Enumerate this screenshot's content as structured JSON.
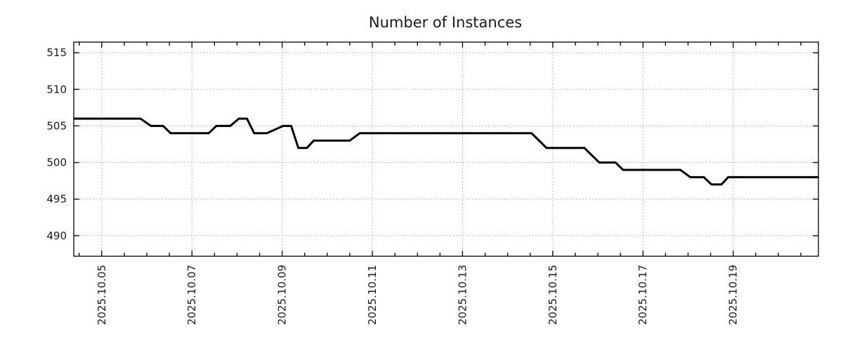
{
  "chart_data": {
    "type": "line",
    "title": "Number of Instances",
    "xlabel": "",
    "ylabel": "",
    "legend": "none",
    "grid": "dotted",
    "colors": {
      "line": "#000000",
      "grid": "#a8a8a8",
      "border": "#000000",
      "text": "#1a1a1a",
      "background": "#ffffff"
    },
    "x_axis": {
      "kind": "date",
      "tick_labels": [
        "2025.10.05",
        "2025.10.07",
        "2025.10.09",
        "2025.10.11",
        "2025.10.13",
        "2025.10.15",
        "2025.10.17",
        "2025.10.19"
      ],
      "tick_days": [
        5,
        7,
        9,
        11,
        13,
        15,
        17,
        19
      ],
      "minor_tick_interval_days": 0.5,
      "range_days": [
        4.38,
        20.89
      ]
    },
    "y_axis": {
      "tick_labels": [
        "490",
        "495",
        "500",
        "505",
        "510",
        "515"
      ],
      "tick_values": [
        490,
        495,
        500,
        505,
        510,
        515
      ],
      "range": [
        487.2,
        516.45
      ]
    },
    "series": [
      {
        "name": "instances",
        "color": "#000000",
        "line_width": 3,
        "points": [
          [
            4.38,
            506
          ],
          [
            5.86,
            506
          ],
          [
            6.09,
            505
          ],
          [
            6.36,
            505
          ],
          [
            6.53,
            504
          ],
          [
            7.37,
            504
          ],
          [
            7.54,
            505
          ],
          [
            7.85,
            505
          ],
          [
            8.04,
            506
          ],
          [
            8.22,
            506
          ],
          [
            8.38,
            504
          ],
          [
            8.66,
            504
          ],
          [
            9.02,
            505
          ],
          [
            9.2,
            505
          ],
          [
            9.36,
            502
          ],
          [
            9.55,
            502
          ],
          [
            9.7,
            503
          ],
          [
            10.5,
            503
          ],
          [
            10.72,
            504
          ],
          [
            14.53,
            504
          ],
          [
            14.86,
            502
          ],
          [
            15.7,
            502
          ],
          [
            16.03,
            500
          ],
          [
            16.39,
            500
          ],
          [
            16.56,
            499
          ],
          [
            17.83,
            499
          ],
          [
            18.05,
            498
          ],
          [
            18.35,
            498
          ],
          [
            18.52,
            497
          ],
          [
            18.74,
            497
          ],
          [
            18.89,
            498
          ],
          [
            20.89,
            498
          ]
        ]
      }
    ]
  }
}
